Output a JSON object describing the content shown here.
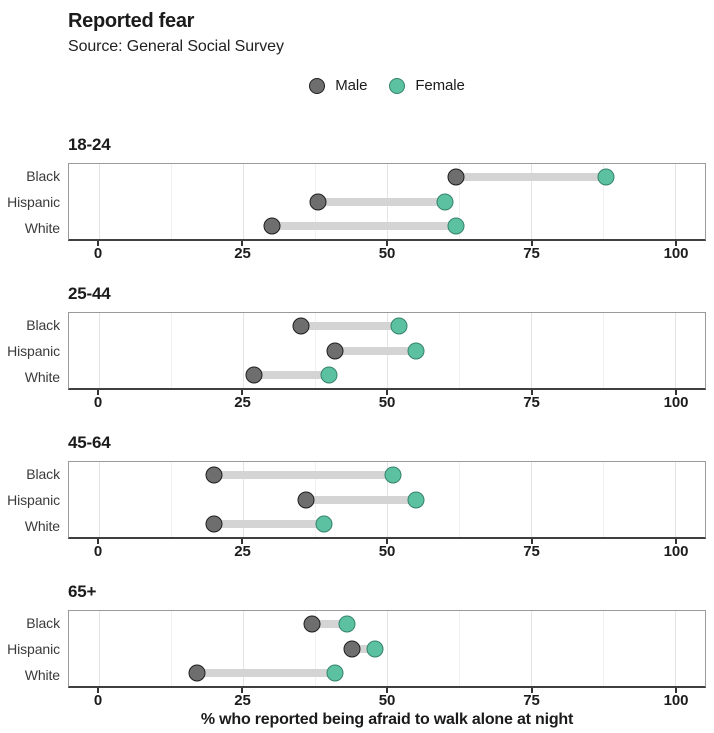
{
  "header": {
    "title": "Reported fear",
    "subtitle": "Source: General Social Survey"
  },
  "legend": {
    "items": [
      {
        "label": "Male",
        "icon": "male-dot-swatch"
      },
      {
        "label": "Female",
        "icon": "female-dot-swatch"
      }
    ]
  },
  "colors": {
    "male_fill": "#6e6e6e",
    "male_stroke": "#1f1f1f",
    "female_fill": "#5cc1a1",
    "female_stroke": "#35836b",
    "bar": "#d4d4d4",
    "grid_major": "#e4e4e4",
    "grid_minor": "#f1f1f1",
    "panel_border": "#9a9a9a",
    "axis_line": "#3f3f3f"
  },
  "chart_data": {
    "type": "dumbbell",
    "title": "Reported fear",
    "subtitle": "Source: General Social Survey",
    "xlabel": "% who reported being afraid to walk alone at night",
    "xlim": [
      0,
      100
    ],
    "x_ticks": [
      0,
      25,
      50,
      75,
      100
    ],
    "x_minor_gridlines": [
      12.5,
      37.5,
      62.5,
      87.5
    ],
    "grid": "vertical major and minor gridlines, light gray, white panel background",
    "legend_position": "top-center",
    "series_names": [
      "Male",
      "Female"
    ],
    "row_categories": [
      "Black",
      "Hispanic",
      "White"
    ],
    "panels": [
      {
        "age_group": "18-24",
        "rows": [
          {
            "category": "Black",
            "male": 62,
            "female": 88
          },
          {
            "category": "Hispanic",
            "male": 38,
            "female": 60
          },
          {
            "category": "White",
            "male": 30,
            "female": 62
          }
        ]
      },
      {
        "age_group": "25-44",
        "rows": [
          {
            "category": "Black",
            "male": 35,
            "female": 52
          },
          {
            "category": "Hispanic",
            "male": 41,
            "female": 55
          },
          {
            "category": "White",
            "male": 27,
            "female": 40
          }
        ]
      },
      {
        "age_group": "45-64",
        "rows": [
          {
            "category": "Black",
            "male": 20,
            "female": 51
          },
          {
            "category": "Hispanic",
            "male": 36,
            "female": 55
          },
          {
            "category": "White",
            "male": 20,
            "female": 39
          }
        ]
      },
      {
        "age_group": "65+",
        "rows": [
          {
            "category": "Black",
            "male": 37,
            "female": 43
          },
          {
            "category": "Hispanic",
            "male": 44,
            "female": 48
          },
          {
            "category": "White",
            "male": 17,
            "female": 41
          }
        ]
      }
    ]
  }
}
